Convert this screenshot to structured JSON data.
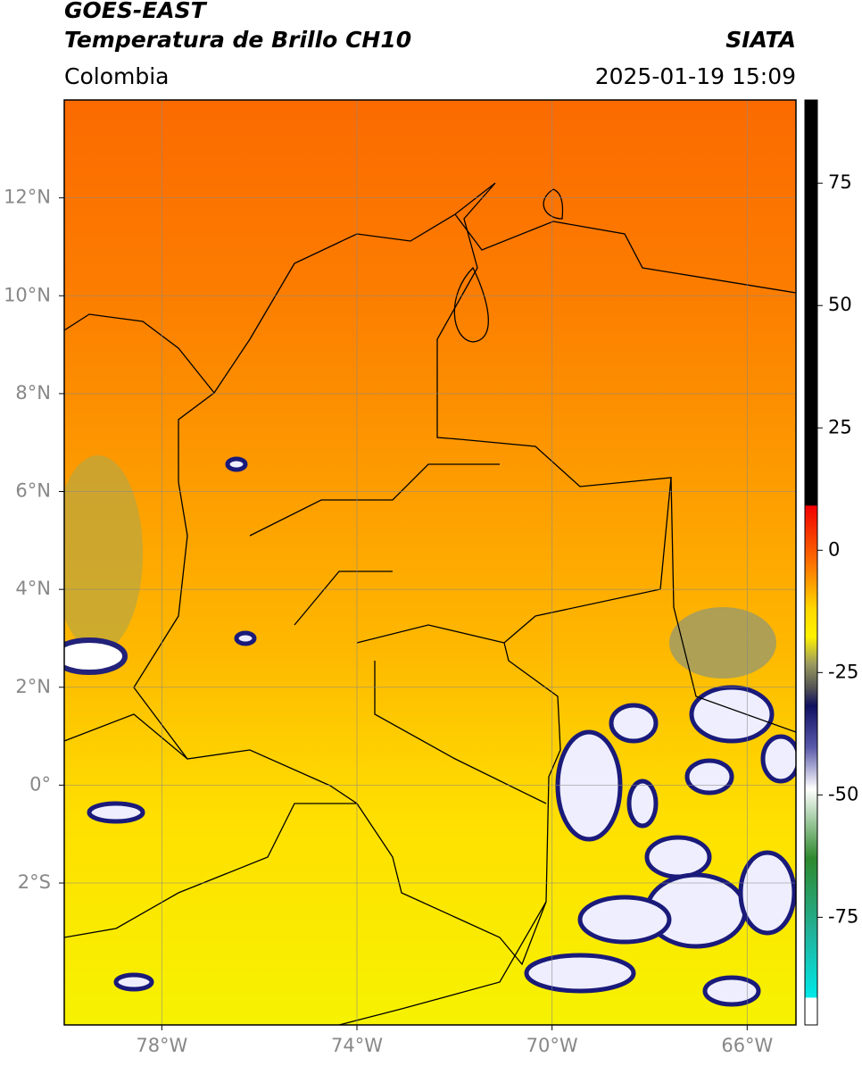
{
  "header": {
    "satellite": "GOES-EAST",
    "product": "Temperatura de Brillo CH10",
    "region": "Colombia",
    "source": "SIATA",
    "datetime": "2025-01-19 15:09"
  },
  "map": {
    "lat_lim": [
      -4.9,
      14
    ],
    "lon_lim": [
      -80,
      -65
    ],
    "lat_ticks": [
      {
        "value": 12,
        "label": "12°N"
      },
      {
        "value": 10,
        "label": "10°N"
      },
      {
        "value": 8,
        "label": "8°N"
      },
      {
        "value": 6,
        "label": "6°N"
      },
      {
        "value": 4,
        "label": "4°N"
      },
      {
        "value": 2,
        "label": "2°N"
      },
      {
        "value": 0,
        "label": "0°"
      },
      {
        "value": -2,
        "label": "2°S"
      }
    ],
    "lon_ticks": [
      {
        "value": -78,
        "label": "78°W"
      },
      {
        "value": -74,
        "label": "74°W"
      },
      {
        "value": -70,
        "label": "70°W"
      },
      {
        "value": -66,
        "label": "66°W"
      }
    ]
  },
  "colorbar": {
    "lim": [
      -97,
      92
    ],
    "ticks": [
      75,
      50,
      25,
      0,
      -25,
      -50,
      -75
    ]
  }
}
